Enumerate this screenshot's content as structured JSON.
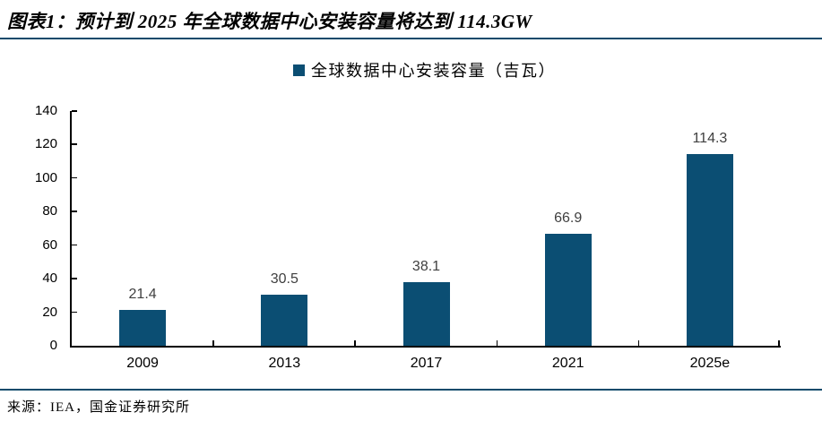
{
  "figure": {
    "title": "图表1：预计到 2025 年全球数据中心安装容量将达到 114.3GW",
    "source": "来源：IEA，国金证券研究所"
  },
  "legend": {
    "label": "全球数据中心安装容量（吉瓦）"
  },
  "colors": {
    "bar": "#0B4E73",
    "accent_line": "#0F4A6B",
    "axis": "#000000",
    "value_label": "#3F3F3F",
    "tick_label": "#000000"
  },
  "chart_data": {
    "type": "bar",
    "categories": [
      "2009",
      "2013",
      "2017",
      "2021",
      "2025e"
    ],
    "values": [
      21.4,
      30.5,
      38.1,
      66.9,
      114.3
    ],
    "value_labels": [
      "21.4",
      "30.5",
      "38.1",
      "66.9",
      "114.3"
    ],
    "title": "全球数据中心安装容量（吉瓦）",
    "xlabel": "",
    "ylabel": "",
    "ylim": [
      0,
      140
    ],
    "yticks": [
      0,
      20,
      40,
      60,
      80,
      100,
      120,
      140
    ],
    "grid": false,
    "legend_position": "top-center"
  }
}
